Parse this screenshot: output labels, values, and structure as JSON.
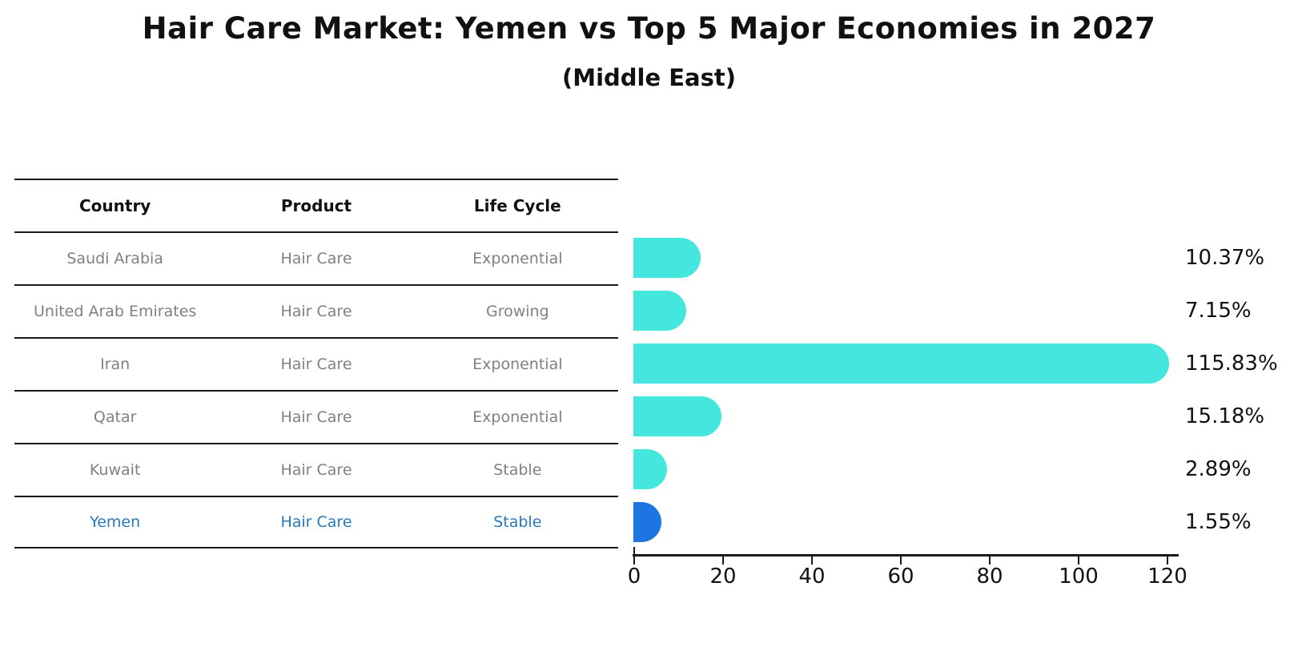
{
  "title": "Hair Care Market: Yemen vs Top 5 Major Economies in 2027",
  "subtitle": "(Middle East)",
  "table": {
    "headers": [
      "Country",
      "Product",
      "Life Cycle"
    ],
    "rows": [
      {
        "country": "Saudi Arabia",
        "product": "Hair Care",
        "life_cycle": "Exponential",
        "highlight": false
      },
      {
        "country": "United Arab Emirates",
        "product": "Hair Care",
        "life_cycle": "Growing",
        "highlight": false
      },
      {
        "country": "Iran",
        "product": "Hair Care",
        "life_cycle": "Exponential",
        "highlight": false
      },
      {
        "country": "Qatar",
        "product": "Hair Care",
        "life_cycle": "Exponential",
        "highlight": false
      },
      {
        "country": "Kuwait",
        "product": "Hair Care",
        "life_cycle": "Stable",
        "highlight": false
      },
      {
        "country": "Yemen",
        "product": "Hair Care",
        "life_cycle": "Stable",
        "highlight": true
      }
    ]
  },
  "chart_data": {
    "type": "bar",
    "orientation": "horizontal",
    "title": "Hair Care Market: Yemen vs Top 5 Major Economies in 2027",
    "subtitle": "(Middle East)",
    "categories": [
      "Saudi Arabia",
      "United Arab Emirates",
      "Iran",
      "Qatar",
      "Kuwait",
      "Yemen"
    ],
    "values": [
      10.37,
      7.15,
      115.83,
      15.18,
      2.89,
      1.55
    ],
    "value_labels": [
      "10.37%",
      "7.15%",
      "115.83%",
      "15.18%",
      "2.89%",
      "1.55%"
    ],
    "x_ticks": [
      0,
      20,
      40,
      60,
      80,
      100,
      120
    ],
    "xlim": [
      0,
      120
    ],
    "grid": false,
    "legend": false,
    "highlight_index": 5
  },
  "colors": {
    "bar": "#45e6de",
    "highlight_bar": "#1c75e0",
    "highlight_text": "#2878be",
    "cell_text": "#808080",
    "header_text": "#111111",
    "line": "#1a1a1a"
  }
}
